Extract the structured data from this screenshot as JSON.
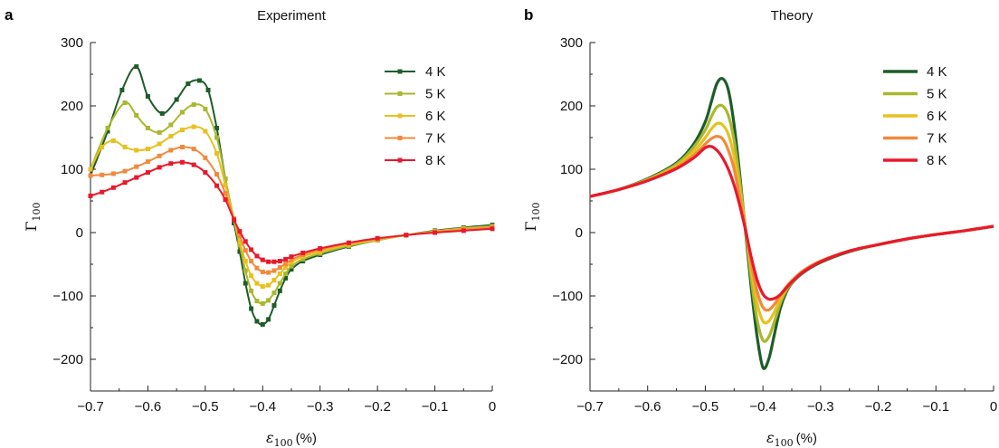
{
  "chart_data": [
    {
      "panel": "a",
      "title": "Experiment",
      "type": "line",
      "markers": true,
      "xlabel": "ε",
      "xlabel_sub": "100",
      "xlabel_unit": "(%)",
      "ylabel": "Γ",
      "ylabel_sub": "100",
      "xlim": [
        -0.7,
        0
      ],
      "ylim": [
        -250,
        300
      ],
      "xticks": [
        -0.7,
        -0.6,
        -0.5,
        -0.4,
        -0.3,
        -0.2,
        -0.1,
        0
      ],
      "xtick_labels": [
        "−0.7",
        "−0.6",
        "−0.5",
        "−0.4",
        "−0.3",
        "−0.2",
        "−0.1",
        "0"
      ],
      "yticks": [
        -200,
        -100,
        0,
        100,
        200,
        300
      ],
      "ytick_labels": [
        "−200",
        "−100",
        "0",
        "100",
        "200",
        "300"
      ],
      "legend_position": "top-right",
      "series": [
        {
          "name": "4 K",
          "color": "#1e5c2a",
          "x": [
            -0.7,
            -0.67,
            -0.645,
            -0.62,
            -0.6,
            -0.575,
            -0.55,
            -0.53,
            -0.51,
            -0.495,
            -0.48,
            -0.465,
            -0.45,
            -0.44,
            -0.43,
            -0.42,
            -0.41,
            -0.4,
            -0.39,
            -0.38,
            -0.37,
            -0.36,
            -0.35,
            -0.33,
            -0.3,
            -0.25,
            -0.2,
            -0.15,
            -0.1,
            -0.05,
            0
          ],
          "y": [
            90,
            160,
            225,
            262,
            215,
            188,
            210,
            235,
            240,
            225,
            165,
            85,
            15,
            -30,
            -80,
            -120,
            -140,
            -145,
            -137,
            -115,
            -92,
            -72,
            -58,
            -45,
            -35,
            -22,
            -12,
            -4,
            3,
            8,
            12
          ]
        },
        {
          "name": "5 K",
          "color": "#a8b82e",
          "x": [
            -0.7,
            -0.67,
            -0.64,
            -0.62,
            -0.6,
            -0.58,
            -0.56,
            -0.54,
            -0.52,
            -0.5,
            -0.48,
            -0.465,
            -0.45,
            -0.44,
            -0.43,
            -0.42,
            -0.41,
            -0.4,
            -0.39,
            -0.38,
            -0.37,
            -0.36,
            -0.35,
            -0.33,
            -0.3,
            -0.25,
            -0.2,
            -0.15,
            -0.1,
            -0.05,
            0
          ],
          "y": [
            100,
            165,
            205,
            185,
            165,
            158,
            170,
            190,
            202,
            195,
            150,
            85,
            20,
            -20,
            -60,
            -92,
            -108,
            -112,
            -107,
            -95,
            -80,
            -65,
            -53,
            -42,
            -33,
            -21,
            -12,
            -4,
            2,
            7,
            10
          ]
        },
        {
          "name": "6 K",
          "color": "#e8c020",
          "x": [
            -0.7,
            -0.68,
            -0.66,
            -0.64,
            -0.62,
            -0.6,
            -0.58,
            -0.56,
            -0.54,
            -0.52,
            -0.5,
            -0.48,
            -0.465,
            -0.45,
            -0.44,
            -0.43,
            -0.42,
            -0.41,
            -0.4,
            -0.39,
            -0.38,
            -0.37,
            -0.36,
            -0.35,
            -0.33,
            -0.3,
            -0.25,
            -0.2,
            -0.15,
            -0.1,
            -0.05,
            0
          ],
          "y": [
            100,
            135,
            145,
            135,
            130,
            132,
            140,
            152,
            162,
            167,
            160,
            125,
            75,
            20,
            -15,
            -45,
            -68,
            -80,
            -85,
            -83,
            -75,
            -65,
            -55,
            -47,
            -38,
            -30,
            -19,
            -11,
            -4,
            2,
            6,
            9
          ]
        },
        {
          "name": "7 K",
          "color": "#f08a3c",
          "x": [
            -0.7,
            -0.68,
            -0.66,
            -0.64,
            -0.62,
            -0.6,
            -0.58,
            -0.56,
            -0.54,
            -0.52,
            -0.5,
            -0.48,
            -0.465,
            -0.45,
            -0.44,
            -0.43,
            -0.42,
            -0.41,
            -0.4,
            -0.39,
            -0.38,
            -0.37,
            -0.36,
            -0.35,
            -0.33,
            -0.3,
            -0.25,
            -0.2,
            -0.15,
            -0.1,
            -0.05,
            0
          ],
          "y": [
            90,
            91,
            93,
            97,
            104,
            112,
            121,
            130,
            135,
            132,
            118,
            92,
            62,
            22,
            -5,
            -28,
            -45,
            -56,
            -62,
            -63,
            -60,
            -55,
            -49,
            -43,
            -35,
            -27,
            -17,
            -10,
            -4,
            1,
            5,
            8
          ]
        },
        {
          "name": "8 K",
          "color": "#e8192c",
          "x": [
            -0.7,
            -0.68,
            -0.66,
            -0.64,
            -0.62,
            -0.6,
            -0.58,
            -0.56,
            -0.54,
            -0.52,
            -0.5,
            -0.48,
            -0.465,
            -0.45,
            -0.44,
            -0.43,
            -0.42,
            -0.41,
            -0.4,
            -0.39,
            -0.38,
            -0.37,
            -0.36,
            -0.35,
            -0.33,
            -0.3,
            -0.25,
            -0.2,
            -0.15,
            -0.1,
            -0.05,
            0
          ],
          "y": [
            58,
            64,
            71,
            79,
            87,
            95,
            103,
            109,
            111,
            107,
            95,
            74,
            52,
            20,
            2,
            -14,
            -27,
            -37,
            -43,
            -46,
            -46,
            -45,
            -42,
            -38,
            -32,
            -25,
            -16,
            -9,
            -4,
            0,
            3,
            6
          ]
        }
      ]
    },
    {
      "panel": "b",
      "title": "Theory",
      "type": "line",
      "markers": false,
      "xlabel": "ε",
      "xlabel_sub": "100",
      "xlabel_unit": "(%)",
      "ylabel": "Γ",
      "ylabel_sub": "100",
      "xlim": [
        -0.7,
        0
      ],
      "ylim": [
        -250,
        300
      ],
      "xticks": [
        -0.7,
        -0.6,
        -0.5,
        -0.4,
        -0.3,
        -0.2,
        -0.1,
        0
      ],
      "xtick_labels": [
        "−0.7",
        "−0.6",
        "−0.5",
        "−0.4",
        "−0.3",
        "−0.2",
        "−0.1",
        "0"
      ],
      "yticks": [
        -200,
        -100,
        0,
        100,
        200,
        300
      ],
      "ytick_labels": [
        "−200",
        "−100",
        "0",
        "100",
        "200",
        "300"
      ],
      "legend_position": "top-right",
      "series": [
        {
          "name": "4 K",
          "color": "#1e5c2a",
          "x": [
            -0.7,
            -0.65,
            -0.6,
            -0.55,
            -0.52,
            -0.5,
            -0.49,
            -0.48,
            -0.47,
            -0.46,
            -0.45,
            -0.44,
            -0.43,
            -0.42,
            -0.41,
            -0.4,
            -0.39,
            -0.38,
            -0.37,
            -0.36,
            -0.35,
            -0.33,
            -0.3,
            -0.25,
            -0.2,
            -0.15,
            -0.1,
            -0.05,
            0
          ],
          "y": [
            57,
            68,
            85,
            110,
            140,
            175,
            205,
            235,
            243,
            225,
            170,
            90,
            0,
            -90,
            -165,
            -213,
            -200,
            -160,
            -120,
            -95,
            -80,
            -63,
            -47,
            -30,
            -19,
            -10,
            -3,
            3,
            10
          ]
        },
        {
          "name": "5 K",
          "color": "#a8b82e",
          "x": [
            -0.7,
            -0.65,
            -0.6,
            -0.55,
            -0.52,
            -0.5,
            -0.49,
            -0.48,
            -0.47,
            -0.46,
            -0.45,
            -0.44,
            -0.43,
            -0.42,
            -0.41,
            -0.4,
            -0.39,
            -0.38,
            -0.37,
            -0.36,
            -0.35,
            -0.33,
            -0.3,
            -0.25,
            -0.2,
            -0.15,
            -0.1,
            -0.05,
            0
          ],
          "y": [
            57,
            68,
            84,
            108,
            135,
            162,
            182,
            198,
            200,
            185,
            145,
            80,
            5,
            -75,
            -138,
            -170,
            -165,
            -140,
            -112,
            -92,
            -79,
            -62,
            -46,
            -29,
            -19,
            -10,
            -3,
            3,
            10
          ]
        },
        {
          "name": "6 K",
          "color": "#e8c020",
          "x": [
            -0.7,
            -0.65,
            -0.6,
            -0.55,
            -0.52,
            -0.5,
            -0.49,
            -0.48,
            -0.47,
            -0.46,
            -0.45,
            -0.44,
            -0.43,
            -0.42,
            -0.41,
            -0.4,
            -0.39,
            -0.38,
            -0.37,
            -0.36,
            -0.35,
            -0.33,
            -0.3,
            -0.25,
            -0.2,
            -0.15,
            -0.1,
            -0.05,
            0
          ],
          "y": [
            57,
            68,
            83,
            105,
            128,
            150,
            163,
            172,
            170,
            155,
            120,
            65,
            5,
            -60,
            -112,
            -140,
            -140,
            -125,
            -105,
            -89,
            -77,
            -61,
            -45,
            -29,
            -19,
            -10,
            -3,
            3,
            10
          ]
        },
        {
          "name": "7 K",
          "color": "#f08a3c",
          "x": [
            -0.7,
            -0.65,
            -0.6,
            -0.55,
            -0.52,
            -0.5,
            -0.49,
            -0.48,
            -0.47,
            -0.46,
            -0.45,
            -0.44,
            -0.43,
            -0.42,
            -0.41,
            -0.4,
            -0.39,
            -0.38,
            -0.37,
            -0.36,
            -0.35,
            -0.33,
            -0.3,
            -0.25,
            -0.2,
            -0.15,
            -0.1,
            -0.05,
            0
          ],
          "y": [
            57,
            68,
            82,
            103,
            122,
            140,
            148,
            152,
            148,
            130,
            100,
            55,
            5,
            -50,
            -93,
            -118,
            -122,
            -113,
            -99,
            -86,
            -76,
            -60,
            -45,
            -29,
            -19,
            -10,
            -3,
            3,
            10
          ]
        },
        {
          "name": "8 K",
          "color": "#e8192c",
          "x": [
            -0.7,
            -0.65,
            -0.6,
            -0.55,
            -0.52,
            -0.51,
            -0.5,
            -0.49,
            -0.48,
            -0.47,
            -0.46,
            -0.45,
            -0.44,
            -0.43,
            -0.42,
            -0.41,
            -0.4,
            -0.39,
            -0.38,
            -0.37,
            -0.36,
            -0.35,
            -0.33,
            -0.3,
            -0.25,
            -0.2,
            -0.15,
            -0.1,
            -0.05,
            0
          ],
          "y": [
            57,
            68,
            82,
            101,
            118,
            126,
            134,
            136,
            130,
            118,
            100,
            75,
            42,
            3,
            -40,
            -75,
            -97,
            -105,
            -104,
            -98,
            -88,
            -78,
            -62,
            -46,
            -29,
            -19,
            -10,
            -3,
            3,
            10
          ]
        }
      ]
    }
  ]
}
